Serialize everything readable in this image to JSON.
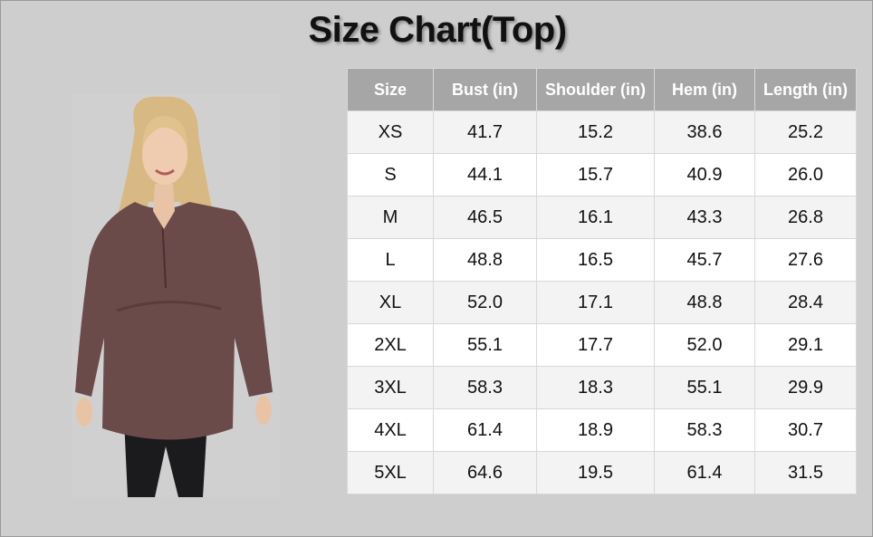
{
  "header": {
    "title": "Size Chart(Top)"
  },
  "table": {
    "columns": [
      "Size",
      "Bust (in)",
      "Shoulder (in)",
      "Hem (in)",
      "Length (in)"
    ],
    "rows": [
      [
        "XS",
        "41.7",
        "15.2",
        "38.6",
        "25.2"
      ],
      [
        "S",
        "44.1",
        "15.7",
        "40.9",
        "26.0"
      ],
      [
        "M",
        "46.5",
        "16.1",
        "43.3",
        "26.8"
      ],
      [
        "L",
        "48.8",
        "16.5",
        "45.7",
        "27.6"
      ],
      [
        "XL",
        "52.0",
        "17.1",
        "48.8",
        "28.4"
      ],
      [
        "2XL",
        "55.1",
        "17.7",
        "52.0",
        "29.1"
      ],
      [
        "3XL",
        "58.3",
        "18.3",
        "55.1",
        "29.9"
      ],
      [
        "4XL",
        "61.4",
        "18.9",
        "58.3",
        "30.7"
      ],
      [
        "5XL",
        "64.6",
        "19.5",
        "61.4",
        "31.5"
      ]
    ]
  }
}
